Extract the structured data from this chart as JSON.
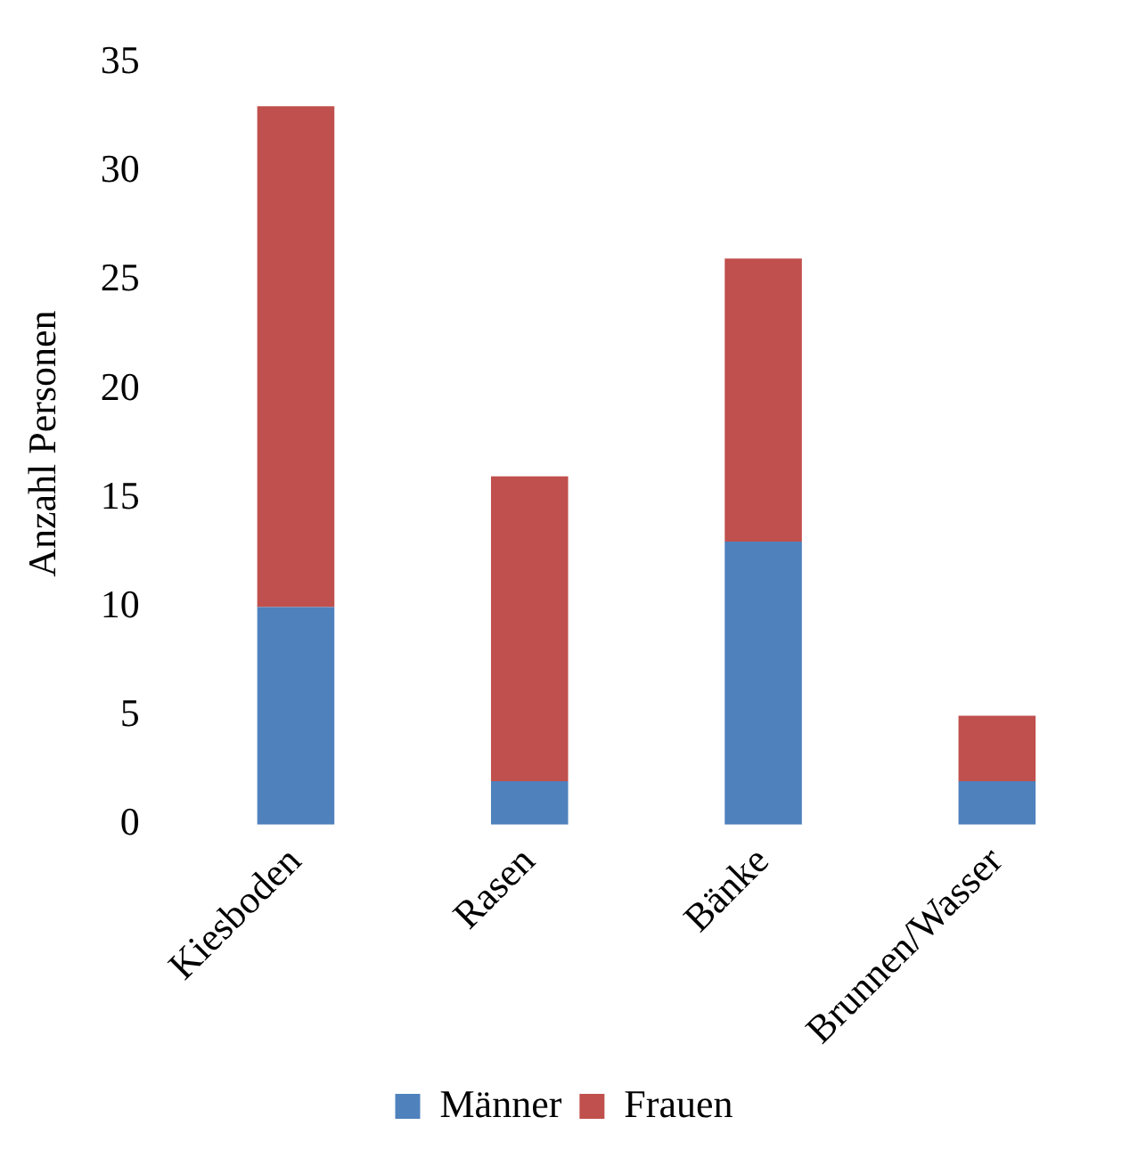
{
  "chart_data": {
    "type": "bar",
    "ylabel": "Anzahl Personen",
    "categories": [
      "Kiesboden",
      "Rasen",
      "Bänke",
      "Brunnen/Wasser"
    ],
    "stacked": true,
    "series": [
      {
        "name": "Männer",
        "color": "#4f81bd",
        "values": [
          10,
          2,
          13,
          2
        ]
      },
      {
        "name": "Frauen",
        "color": "#c0504d",
        "values": [
          23,
          14,
          13,
          3
        ]
      }
    ],
    "ylim": [
      0,
      35
    ],
    "yticks": [
      0,
      5,
      10,
      15,
      20,
      25,
      30,
      35
    ],
    "grid": false,
    "legend": "bottom"
  }
}
